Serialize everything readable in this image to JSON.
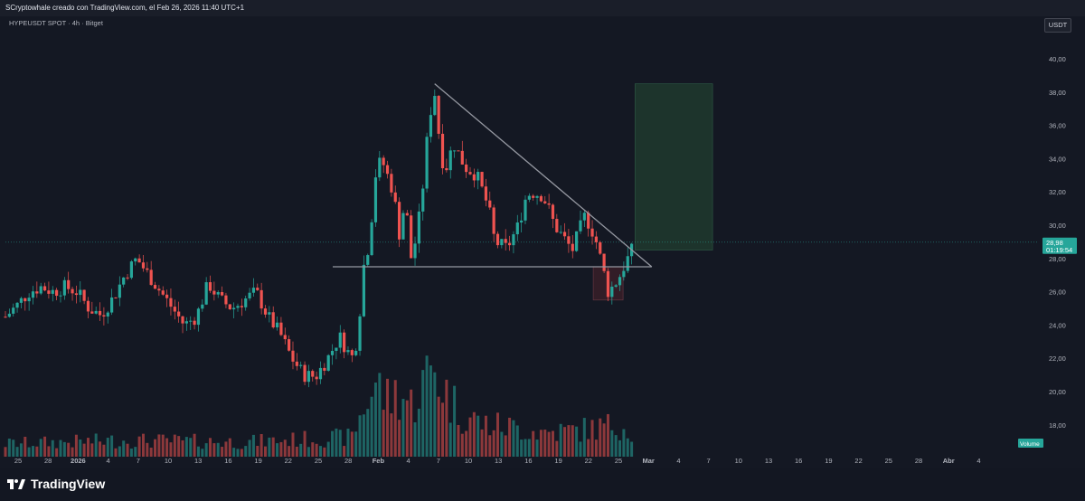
{
  "header": {
    "attribution": "SCryptowhale creado con TradingView.com, el Feb 26, 2026 11:40 UTC+1"
  },
  "symbol": {
    "label": "HYPEUSDT SPOT · 4h · Bitget"
  },
  "currency_button": "USDT",
  "last_price": {
    "value": "28,98",
    "countdown": "01:19:54"
  },
  "volume_label": "Volume",
  "brand": "TradingView",
  "colors": {
    "up": "#26a69a",
    "down": "#ef5350",
    "background": "#141823",
    "trendline": "#9598a1",
    "target_box": "#1e3a2e"
  },
  "chart_data": {
    "type": "candlestick",
    "ylim": [
      16.9,
      41.5
    ],
    "y_ticks": [
      "40,00",
      "38,00",
      "36,00",
      "34,00",
      "32,00",
      "30,00",
      "28,00",
      "26,00",
      "24,00",
      "22,00",
      "20,00",
      "18,00"
    ],
    "x_ticks": [
      "25",
      "28",
      "2026",
      "4",
      "7",
      "10",
      "13",
      "16",
      "19",
      "22",
      "25",
      "28",
      "Feb",
      "4",
      "7",
      "10",
      "13",
      "16",
      "19",
      "22",
      "25",
      "Mar",
      "4",
      "7",
      "10",
      "13",
      "16",
      "19",
      "22",
      "25",
      "28",
      "Abr",
      "4"
    ],
    "price_path": [
      [
        24.5,
        0
      ],
      [
        25.2,
        2
      ],
      [
        26.0,
        4
      ],
      [
        26.3,
        6
      ],
      [
        26.0,
        8
      ],
      [
        26.3,
        10
      ],
      [
        26.0,
        12
      ],
      [
        25.0,
        14
      ],
      [
        24.6,
        16
      ],
      [
        25.6,
        18
      ],
      [
        27.0,
        20
      ],
      [
        28.0,
        22
      ],
      [
        27.0,
        24
      ],
      [
        26.0,
        26
      ],
      [
        25.0,
        28
      ],
      [
        24.0,
        30
      ],
      [
        24.5,
        32
      ],
      [
        26.5,
        34
      ],
      [
        25.5,
        36
      ],
      [
        25.0,
        38
      ],
      [
        25.5,
        40
      ],
      [
        26.0,
        42
      ],
      [
        24.5,
        44
      ],
      [
        23.5,
        46
      ],
      [
        22.0,
        48
      ],
      [
        21.0,
        50
      ],
      [
        20.9,
        52
      ],
      [
        22.0,
        54
      ],
      [
        23.3,
        56
      ],
      [
        22.0,
        58
      ],
      [
        23.2,
        59
      ],
      [
        27.5,
        60
      ],
      [
        29.0,
        61
      ],
      [
        33.0,
        62
      ],
      [
        34.0,
        63
      ],
      [
        32.0,
        65
      ],
      [
        29.5,
        66
      ],
      [
        31.5,
        67
      ],
      [
        28.0,
        68
      ],
      [
        29.5,
        69
      ],
      [
        32.5,
        70
      ],
      [
        36.5,
        71
      ],
      [
        38.0,
        72
      ],
      [
        34.0,
        73
      ],
      [
        33.5,
        74
      ],
      [
        35.0,
        75
      ],
      [
        33.5,
        77
      ],
      [
        33.0,
        79
      ],
      [
        31.0,
        81
      ],
      [
        29.0,
        82
      ],
      [
        28.6,
        84
      ],
      [
        30.0,
        86
      ],
      [
        31.5,
        87
      ],
      [
        32.0,
        88
      ],
      [
        31.8,
        90
      ],
      [
        31.0,
        91
      ],
      [
        30.0,
        92
      ],
      [
        29.0,
        94
      ],
      [
        28.5,
        95
      ],
      [
        29.5,
        96
      ],
      [
        30.5,
        97
      ],
      [
        30.0,
        98
      ],
      [
        29.0,
        99
      ],
      [
        27.6,
        100
      ],
      [
        26.0,
        101
      ],
      [
        26.4,
        102
      ],
      [
        27.0,
        103
      ],
      [
        27.8,
        104
      ],
      [
        28.5,
        105
      ],
      [
        29.0,
        105.5
      ]
    ],
    "volume_profile": [
      [
        0,
        0.8
      ],
      [
        20,
        1.0
      ],
      [
        40,
        0.9
      ],
      [
        58,
        1.2
      ],
      [
        60,
        3.0
      ],
      [
        62,
        4.5
      ],
      [
        64,
        3.5
      ],
      [
        66,
        4.0
      ],
      [
        68,
        3.2
      ],
      [
        70,
        4.5
      ],
      [
        72,
        5.5
      ],
      [
        74,
        3.8
      ],
      [
        76,
        2.8
      ],
      [
        80,
        2.0
      ],
      [
        85,
        1.8
      ],
      [
        90,
        1.5
      ],
      [
        95,
        1.6
      ],
      [
        100,
        1.8
      ],
      [
        103,
        2.0
      ],
      [
        105.5,
        1.5
      ]
    ],
    "annotations": {
      "trendline_points": [
        [
          72,
          38.5
        ],
        [
          108,
          27.5
        ]
      ],
      "support_level": 27.5,
      "support_range": [
        55,
        108
      ],
      "target_box": {
        "x0": 105.5,
        "x1": 118.5,
        "y0": 28.5,
        "y1": 38.5
      },
      "dip_box": {
        "x0": 98.5,
        "x1": 103.5,
        "y0": 25.5,
        "y1": 27.5
      },
      "last_price_level": 28.98
    }
  }
}
